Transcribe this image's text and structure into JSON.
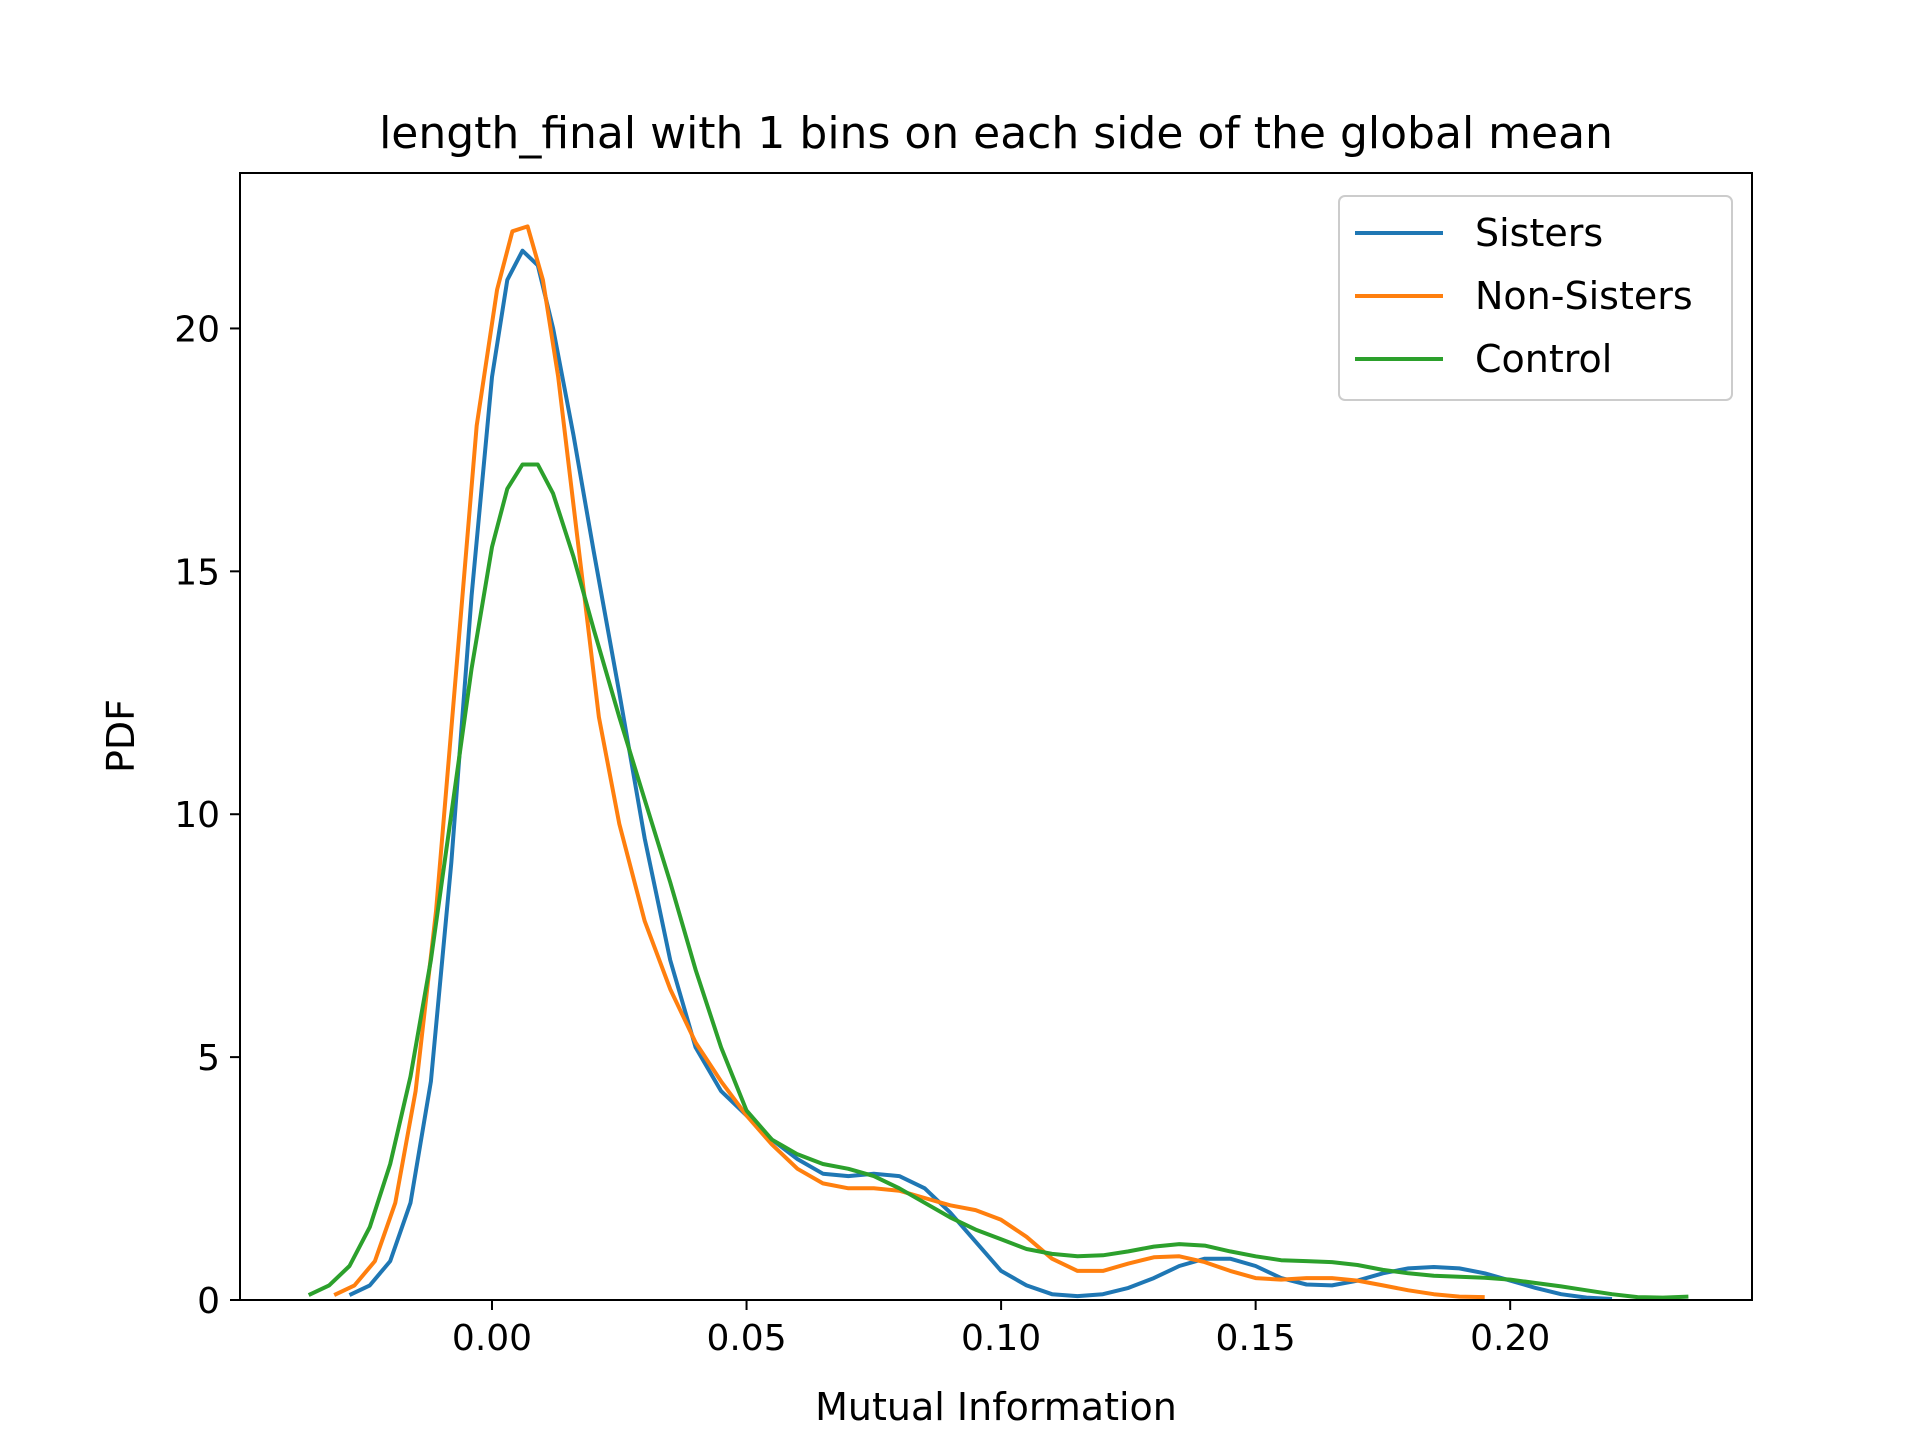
{
  "chart_data": {
    "type": "line",
    "title": "length_final with 1 bins on each side of the global mean",
    "xlabel": "Mutual Information",
    "ylabel": "PDF",
    "xlim": [
      -0.0495,
      0.2475
    ],
    "ylim": [
      0,
      23.2
    ],
    "xticks": [
      0.0,
      0.05,
      0.1,
      0.15,
      0.2
    ],
    "xtick_labels": [
      "0.00",
      "0.05",
      "0.10",
      "0.15",
      "0.20"
    ],
    "yticks": [
      0,
      5,
      10,
      15,
      20
    ],
    "ytick_labels": [
      "0",
      "5",
      "10",
      "15",
      "20"
    ],
    "grid": false,
    "legend_position": "top-right",
    "series": [
      {
        "name": "Sisters",
        "color": "#1f77b4",
        "points": [
          [
            -0.028,
            0.1
          ],
          [
            -0.024,
            0.3
          ],
          [
            -0.02,
            0.8
          ],
          [
            -0.016,
            2.0
          ],
          [
            -0.012,
            4.5
          ],
          [
            -0.008,
            9.0
          ],
          [
            -0.004,
            14.5
          ],
          [
            0.0,
            19.0
          ],
          [
            0.003,
            21.0
          ],
          [
            0.006,
            21.6
          ],
          [
            0.009,
            21.3
          ],
          [
            0.012,
            20.0
          ],
          [
            0.016,
            17.8
          ],
          [
            0.02,
            15.4
          ],
          [
            0.025,
            12.5
          ],
          [
            0.03,
            9.5
          ],
          [
            0.035,
            7.0
          ],
          [
            0.04,
            5.2
          ],
          [
            0.045,
            4.3
          ],
          [
            0.05,
            3.8
          ],
          [
            0.055,
            3.3
          ],
          [
            0.06,
            2.9
          ],
          [
            0.065,
            2.6
          ],
          [
            0.07,
            2.55
          ],
          [
            0.075,
            2.6
          ],
          [
            0.08,
            2.55
          ],
          [
            0.085,
            2.3
          ],
          [
            0.09,
            1.8
          ],
          [
            0.095,
            1.2
          ],
          [
            0.1,
            0.6
          ],
          [
            0.105,
            0.3
          ],
          [
            0.11,
            0.12
          ],
          [
            0.115,
            0.08
          ],
          [
            0.12,
            0.12
          ],
          [
            0.125,
            0.25
          ],
          [
            0.13,
            0.45
          ],
          [
            0.135,
            0.7
          ],
          [
            0.14,
            0.85
          ],
          [
            0.145,
            0.85
          ],
          [
            0.15,
            0.7
          ],
          [
            0.155,
            0.45
          ],
          [
            0.16,
            0.32
          ],
          [
            0.165,
            0.3
          ],
          [
            0.17,
            0.4
          ],
          [
            0.175,
            0.55
          ],
          [
            0.18,
            0.65
          ],
          [
            0.185,
            0.68
          ],
          [
            0.19,
            0.65
          ],
          [
            0.195,
            0.55
          ],
          [
            0.2,
            0.4
          ],
          [
            0.205,
            0.25
          ],
          [
            0.21,
            0.12
          ],
          [
            0.215,
            0.05
          ],
          [
            0.22,
            0.02
          ]
        ]
      },
      {
        "name": "Non-Sisters",
        "color": "#ff7f0e",
        "points": [
          [
            -0.031,
            0.1
          ],
          [
            -0.027,
            0.3
          ],
          [
            -0.023,
            0.8
          ],
          [
            -0.019,
            2.0
          ],
          [
            -0.015,
            4.3
          ],
          [
            -0.011,
            8.0
          ],
          [
            -0.007,
            13.0
          ],
          [
            -0.003,
            18.0
          ],
          [
            0.001,
            20.8
          ],
          [
            0.004,
            22.0
          ],
          [
            0.007,
            22.1
          ],
          [
            0.01,
            21.0
          ],
          [
            0.013,
            19.0
          ],
          [
            0.017,
            15.5
          ],
          [
            0.021,
            12.0
          ],
          [
            0.025,
            9.8
          ],
          [
            0.03,
            7.8
          ],
          [
            0.035,
            6.4
          ],
          [
            0.04,
            5.3
          ],
          [
            0.045,
            4.5
          ],
          [
            0.05,
            3.8
          ],
          [
            0.055,
            3.2
          ],
          [
            0.06,
            2.7
          ],
          [
            0.065,
            2.4
          ],
          [
            0.07,
            2.3
          ],
          [
            0.075,
            2.3
          ],
          [
            0.08,
            2.25
          ],
          [
            0.085,
            2.1
          ],
          [
            0.09,
            1.95
          ],
          [
            0.095,
            1.85
          ],
          [
            0.1,
            1.65
          ],
          [
            0.105,
            1.3
          ],
          [
            0.11,
            0.85
          ],
          [
            0.115,
            0.6
          ],
          [
            0.12,
            0.6
          ],
          [
            0.125,
            0.75
          ],
          [
            0.13,
            0.88
          ],
          [
            0.135,
            0.9
          ],
          [
            0.14,
            0.78
          ],
          [
            0.145,
            0.6
          ],
          [
            0.15,
            0.45
          ],
          [
            0.155,
            0.42
          ],
          [
            0.16,
            0.45
          ],
          [
            0.165,
            0.45
          ],
          [
            0.17,
            0.4
          ],
          [
            0.175,
            0.3
          ],
          [
            0.18,
            0.2
          ],
          [
            0.185,
            0.12
          ],
          [
            0.19,
            0.07
          ],
          [
            0.195,
            0.06
          ]
        ]
      },
      {
        "name": "Control",
        "color": "#2ca02c",
        "points": [
          [
            -0.036,
            0.1
          ],
          [
            -0.032,
            0.3
          ],
          [
            -0.028,
            0.7
          ],
          [
            -0.024,
            1.5
          ],
          [
            -0.02,
            2.8
          ],
          [
            -0.016,
            4.6
          ],
          [
            -0.012,
            7.0
          ],
          [
            -0.008,
            10.0
          ],
          [
            -0.004,
            13.0
          ],
          [
            0.0,
            15.5
          ],
          [
            0.003,
            16.7
          ],
          [
            0.006,
            17.2
          ],
          [
            0.009,
            17.2
          ],
          [
            0.012,
            16.6
          ],
          [
            0.016,
            15.3
          ],
          [
            0.02,
            13.8
          ],
          [
            0.025,
            12.0
          ],
          [
            0.03,
            10.3
          ],
          [
            0.035,
            8.6
          ],
          [
            0.04,
            6.8
          ],
          [
            0.045,
            5.2
          ],
          [
            0.05,
            3.9
          ],
          [
            0.055,
            3.3
          ],
          [
            0.06,
            3.0
          ],
          [
            0.065,
            2.8
          ],
          [
            0.07,
            2.7
          ],
          [
            0.075,
            2.55
          ],
          [
            0.08,
            2.3
          ],
          [
            0.085,
            2.0
          ],
          [
            0.09,
            1.7
          ],
          [
            0.095,
            1.45
          ],
          [
            0.1,
            1.25
          ],
          [
            0.105,
            1.05
          ],
          [
            0.11,
            0.95
          ],
          [
            0.115,
            0.9
          ],
          [
            0.12,
            0.92
          ],
          [
            0.125,
            1.0
          ],
          [
            0.13,
            1.1
          ],
          [
            0.135,
            1.15
          ],
          [
            0.14,
            1.12
          ],
          [
            0.145,
            1.0
          ],
          [
            0.15,
            0.9
          ],
          [
            0.155,
            0.82
          ],
          [
            0.16,
            0.8
          ],
          [
            0.165,
            0.78
          ],
          [
            0.17,
            0.72
          ],
          [
            0.175,
            0.62
          ],
          [
            0.18,
            0.55
          ],
          [
            0.185,
            0.5
          ],
          [
            0.19,
            0.48
          ],
          [
            0.195,
            0.46
          ],
          [
            0.2,
            0.42
          ],
          [
            0.205,
            0.35
          ],
          [
            0.21,
            0.28
          ],
          [
            0.215,
            0.2
          ],
          [
            0.22,
            0.12
          ],
          [
            0.225,
            0.06
          ],
          [
            0.23,
            0.05
          ],
          [
            0.235,
            0.07
          ]
        ]
      }
    ]
  }
}
